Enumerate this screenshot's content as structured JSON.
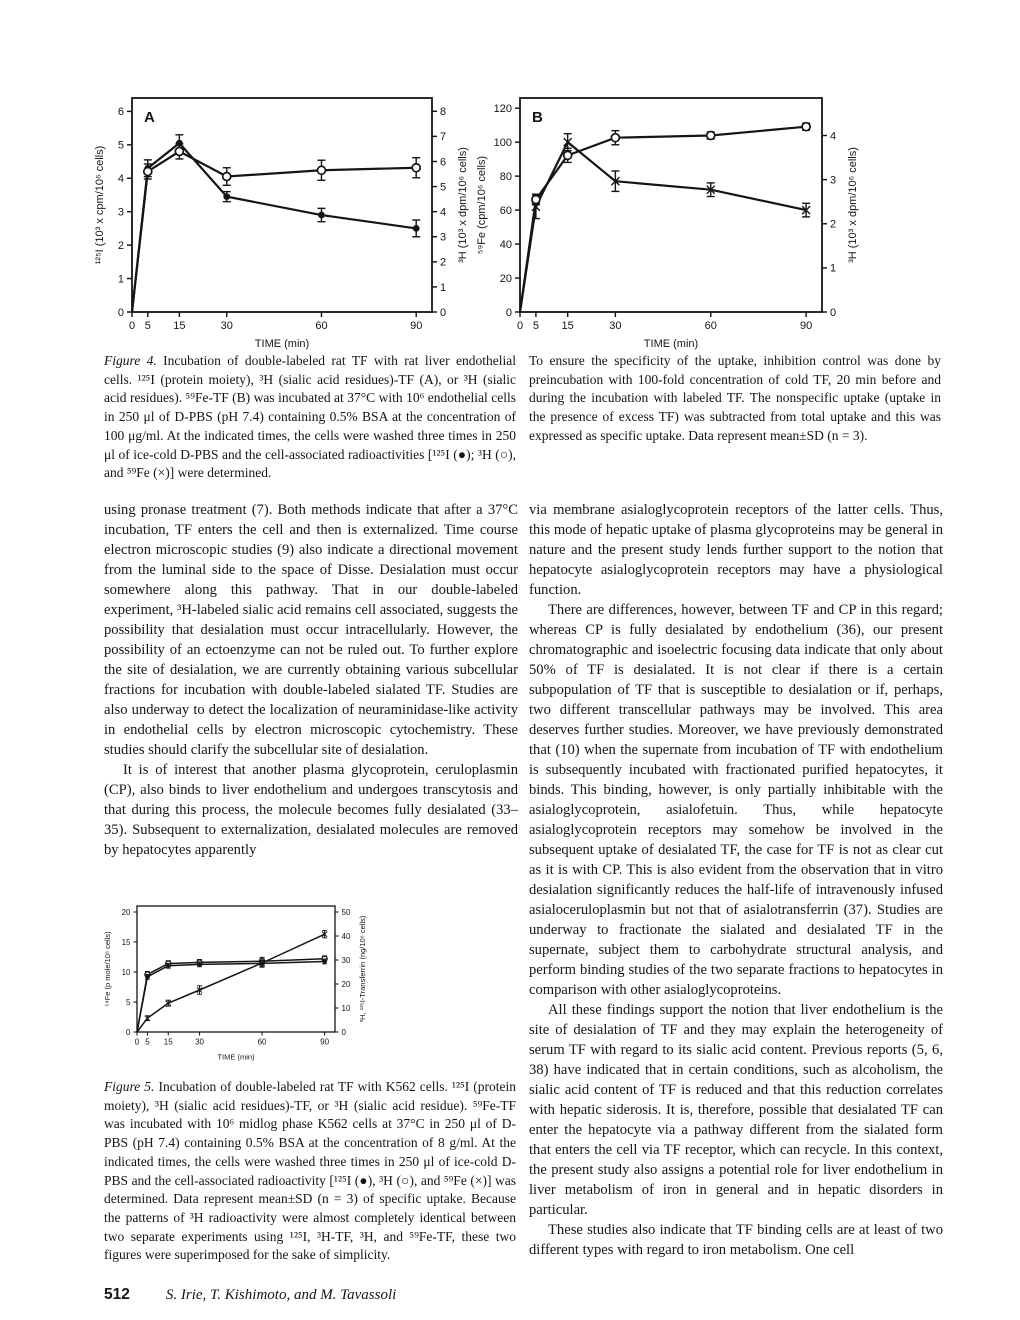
{
  "footer": {
    "page_number": "512",
    "authors": "S. Irie, T. Kishimoto, and M. Tavassoli"
  },
  "figure4_caption": {
    "label": "Figure 4.",
    "text_left": "Incubation of double-labeled rat TF with rat liver endothelial cells. ¹²⁵I (protein moiety), ³H (sialic acid residues)-TF (A), or ³H (sialic acid residues). ⁵⁹Fe-TF (B) was incubated at 37°C with 10⁶ endothelial cells in 250 μl of D-PBS (pH 7.4) containing 0.5% BSA at the concentration of 100 μg/ml. At the indicated times, the cells were washed three times in 250 μl of ice-cold D-PBS and the cell-associated radioactivities [¹²⁵I (●); ³H (○), and ⁵⁹Fe (×)] were determined.",
    "text_right": "To ensure the specificity of the uptake, inhibition control was done by preincubation with 100-fold concentration of cold TF, 20 min before and during the incubation with labeled TF. The nonspecific uptake (uptake in the presence of excess TF) was subtracted from total uptake and this was expressed as specific uptake. Data represent mean±SD (n = 3)."
  },
  "figure5_caption": {
    "label": "Figure 5.",
    "text": "Incubation of double-labeled rat TF with K562 cells. ¹²⁵I (protein moiety), ³H (sialic acid residues)-TF, or ³H (sialic acid residue). ⁵⁹Fe-TF was incubated with 10⁶ midlog phase K562 cells at 37°C in 250 μl of D-PBS (pH 7.4) containing 0.5% BSA at the concentration of 8 g/ml. At the indicated times, the cells were washed three times in 250 μl of ice-cold D-PBS and the cell-associated radioactivity [¹²⁵I (●), ³H (○), and ⁵⁹Fe (×)] was determined. Data represent mean±SD (n = 3) of specific uptake. Because the patterns of ³H radioactivity were almost completely identical between two separate experiments using ¹²⁵I, ³H-TF, ³H, and ⁵⁹Fe-TF, these two figures were superimposed for the sake of simplicity."
  },
  "body": {
    "left_paragraphs": [
      "using pronase treatment (7). Both methods indicate that after a 37°C incubation, TF enters the cell and then is externalized. Time course electron microscopic studies (9) also indicate a directional movement from the luminal side to the space of Disse. Desialation must occur somewhere along this pathway. That in our double-labeled experiment, ³H-labeled sialic acid remains cell associated, suggests the possibility that desialation must occur intracellularly. However, the possibility of an ectoenzyme can not be ruled out. To further explore the site of desialation, we are currently obtaining various subcellular fractions for incubation with double-labeled sialated TF. Studies are also underway to detect the localization of neuraminidase-like activity in endothelial cells by electron microscopic cytochemistry. These studies should clarify the subcellular site of desialation.",
      "It is of interest that another plasma glycoprotein, ceruloplasmin (CP), also binds to liver endothelium and undergoes transcytosis and that during this process, the molecule becomes fully desialated (33–35). Subsequent to externalization, desialated molecules are removed by hepatocytes apparently"
    ],
    "right_paragraphs": [
      "via membrane asialoglycoprotein receptors of the latter cells. Thus, this mode of hepatic uptake of plasma glycoproteins may be general in nature and the present study lends further support to the notion that hepatocyte asialoglycoprotein receptors may have a physiological function.",
      "There are differences, however, between TF and CP in this regard; whereas CP is fully desialated by endothelium (36), our present chromatographic and isoelectric focusing data indicate that only about 50% of TF is desialated. It is not clear if there is a certain subpopulation of TF that is susceptible to desialation or if, perhaps, two different transcellular pathways may be involved. This area deserves further studies. Moreover, we have previously demonstrated that (10) when the supernate from incubation of TF with endothelium is subsequently incubated with fractionated purified hepatocytes, it binds. This binding, however, is only partially inhibitable with the asialoglycoprotein, asialofetuin. Thus, while hepatocyte asialoglycoprotein receptors may somehow be involved in the subsequent uptake of desialated TF, the case for TF is not as clear cut as it is with CP. This is also evident from the observation that in vitro desialation significantly reduces the half-life of intravenously infused asialoceruloplasmin but not that of asialotransferrin (37). Studies are underway to fractionate the sialated and desialated TF in the supernate, subject them to carbohydrate structural analysis, and perform binding studies of the two separate fractions to hepatocytes in comparison with other asialoglycoproteins.",
      "All these findings support the notion that liver endothelium is the site of desialation of TF and they may explain the heterogeneity of serum TF with regard to its sialic acid content. Previous reports (5, 6, 38) have indicated that in certain conditions, such as alcoholism, the sialic acid content of TF is reduced and that this reduction correlates with hepatic siderosis. It is, therefore, possible that desialated TF can enter the hepatocyte via a pathway different from the sialated form that enters the cell via TF receptor, which can recycle. In this context, the present study also assigns a potential role for liver endothelium in liver metabolism of iron in general and in hepatic disorders in particular.",
      "These studies also indicate that TF binding cells are at least of two different types with regard to iron metabolism. One cell"
    ]
  },
  "chart_data": [
    {
      "id": "A",
      "type": "line",
      "panel_label": "A",
      "xlabel": "TIME (min)",
      "xlim": [
        0,
        95
      ],
      "x_ticks": [
        0,
        5,
        15,
        30,
        60,
        90
      ],
      "grid": false,
      "legend": "none",
      "y_left": {
        "label": "¹²⁵I (10³ x cpm/10⁶ cells)",
        "lim": [
          0,
          6.4
        ],
        "ticks": [
          0,
          1,
          2,
          3,
          4,
          5,
          6
        ]
      },
      "y_right": {
        "label": "³H (10³ x dpm/10⁶ cells)",
        "lim": [
          0,
          8.53
        ],
        "ticks": [
          0,
          1,
          2,
          3,
          4,
          5,
          6,
          7,
          8
        ]
      },
      "series": [
        {
          "name": "125I-protein-moiety",
          "marker": "filled-circle",
          "axis": "left",
          "x": [
            0,
            5,
            15,
            30,
            60,
            90
          ],
          "y": [
            0,
            4.3,
            5.05,
            3.45,
            2.9,
            2.5
          ],
          "err": [
            0,
            0.25,
            0.25,
            0.15,
            0.2,
            0.25
          ]
        },
        {
          "name": "3H-sialic-acid",
          "marker": "open-circle",
          "axis": "right",
          "x": [
            0,
            5,
            15,
            30,
            60,
            90
          ],
          "y": [
            0,
            5.6,
            6.4,
            5.4,
            5.65,
            5.75
          ],
          "err": [
            0,
            0.3,
            0.3,
            0.35,
            0.4,
            0.4
          ]
        }
      ]
    },
    {
      "id": "B",
      "type": "line",
      "panel_label": "B",
      "xlabel": "TIME (min)",
      "xlim": [
        0,
        95
      ],
      "x_ticks": [
        0,
        5,
        15,
        30,
        60,
        90
      ],
      "grid": false,
      "legend": "none",
      "y_left": {
        "label": "⁵⁹Fe (cpm/10⁶ cells)",
        "lim": [
          0,
          126
        ],
        "ticks": [
          0,
          20,
          40,
          60,
          80,
          100,
          120
        ]
      },
      "y_right": {
        "label": "³H (10³ x dpm/10⁶ cells)",
        "lim": [
          0,
          4.85
        ],
        "ticks": [
          0,
          1,
          2,
          3,
          4
        ]
      },
      "series": [
        {
          "name": "59Fe",
          "marker": "x",
          "axis": "left",
          "x": [
            0,
            5,
            15,
            30,
            60,
            90
          ],
          "y": [
            0,
            62,
            100,
            77,
            72,
            60
          ],
          "err": [
            0,
            7,
            5,
            6,
            4,
            4
          ]
        },
        {
          "name": "3H-sialic-acid",
          "marker": "open-circle",
          "axis": "right",
          "x": [
            0,
            5,
            15,
            30,
            60,
            90
          ],
          "y": [
            0,
            2.55,
            3.55,
            3.95,
            4.0,
            4.2
          ],
          "err": [
            0,
            0.12,
            0.16,
            0.16,
            0.08,
            0.08
          ]
        }
      ]
    },
    {
      "id": "F5",
      "type": "line",
      "panel_label": "",
      "xlabel": "TIME (min)",
      "xlim": [
        0,
        95
      ],
      "x_ticks": [
        0,
        5,
        15,
        30,
        60,
        90
      ],
      "grid": false,
      "legend": "none",
      "y_left": {
        "label": "⁵⁹Fe (p mole/10⁶ cells)",
        "lim": [
          0,
          21
        ],
        "ticks": [
          0,
          5,
          10,
          15,
          20
        ]
      },
      "y_right": {
        "label": "³H, ¹²⁵I-Transferrin (ng/10⁶ cells)",
        "lim": [
          0,
          52.5
        ],
        "ticks": [
          0,
          10,
          20,
          30,
          40,
          50
        ]
      },
      "series": [
        {
          "name": "3H-TF",
          "marker": "open-circle",
          "axis": "right",
          "x": [
            0,
            5,
            15,
            30,
            60,
            90
          ],
          "y": [
            0,
            24,
            28.5,
            29,
            29.5,
            30.5
          ],
          "err": [
            0,
            1.2,
            1.2,
            1.2,
            1.6,
            1.2
          ]
        },
        {
          "name": "125I-TF",
          "marker": "filled-circle",
          "axis": "right",
          "x": [
            0,
            5,
            15,
            30,
            60,
            90
          ],
          "y": [
            0,
            23,
            27.6,
            28.2,
            28.6,
            29.4
          ],
          "err": [
            0,
            1.0,
            1.0,
            1.0,
            1.2,
            1.0
          ]
        },
        {
          "name": "59Fe",
          "marker": "x",
          "axis": "left",
          "x": [
            0,
            5,
            15,
            30,
            60,
            90
          ],
          "y": [
            0,
            2.3,
            4.8,
            7.0,
            11.5,
            16.3
          ],
          "err": [
            0,
            0.4,
            0.5,
            0.7,
            0.7,
            0.6
          ]
        }
      ]
    }
  ]
}
